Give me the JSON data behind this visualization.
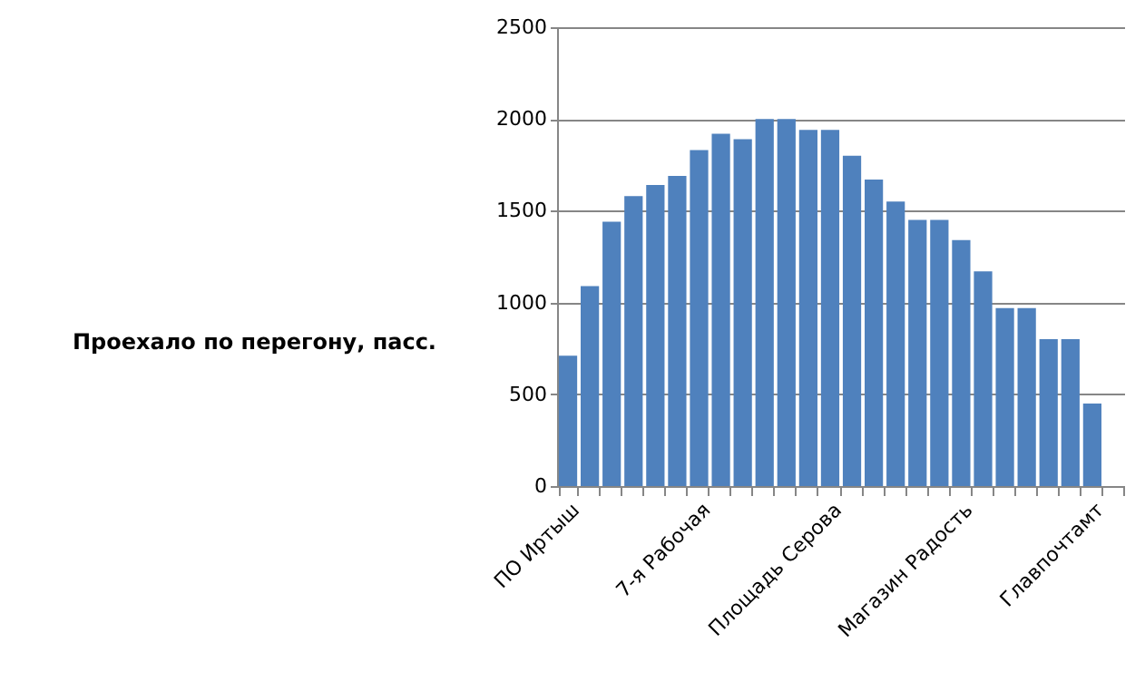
{
  "chart_data": {
    "type": "bar",
    "ylabel": "Проехало по перегону, пасс.",
    "categories": [
      "ПО Иртыш",
      null,
      null,
      null,
      null,
      null,
      "7-я Рабочая",
      null,
      null,
      null,
      null,
      null,
      "Площадь  Серова",
      null,
      null,
      null,
      null,
      null,
      "Магазин Радость",
      null,
      null,
      null,
      null,
      null,
      "Главпочтамт",
      null
    ],
    "values": [
      710,
      1090,
      1440,
      1580,
      1640,
      1690,
      1830,
      1920,
      1890,
      2000,
      2000,
      1940,
      1940,
      1800,
      1670,
      1550,
      1450,
      1450,
      1340,
      1170,
      970,
      970,
      800,
      800,
      450,
      null
    ],
    "color": "#4f81bd",
    "ylim": [
      0,
      2500
    ],
    "yticks": [
      0,
      500,
      1000,
      1500,
      2000,
      2500
    ],
    "grid": "y"
  }
}
